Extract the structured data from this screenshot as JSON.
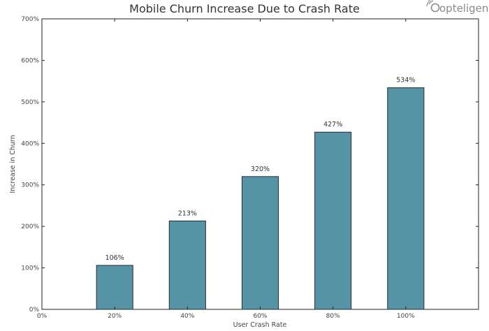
{
  "logo": {
    "text": "opteligent"
  },
  "chart_data": {
    "type": "bar",
    "title": "Mobile Churn Increase Due to Crash Rate",
    "xlabel": "User Crash Rate",
    "ylabel": "Increase in Churn",
    "x_ticks": [
      0,
      20,
      40,
      60,
      80,
      100,
      120
    ],
    "x_tick_labels": [
      "0%",
      "20%",
      "40%",
      "60%",
      "80%",
      "100%",
      ""
    ],
    "xlim": [
      0,
      120
    ],
    "y_ticks": [
      0,
      100,
      200,
      300,
      400,
      500,
      600,
      700
    ],
    "y_tick_labels": [
      "0%",
      "100%",
      "200%",
      "300%",
      "400%",
      "500%",
      "600%",
      "700%"
    ],
    "ylim": [
      0,
      700
    ],
    "categories": [
      "20%",
      "40%",
      "60%",
      "80%",
      "100%"
    ],
    "x": [
      20,
      40,
      60,
      80,
      100
    ],
    "values": [
      106,
      213,
      320,
      427,
      534
    ],
    "data_labels": [
      "106%",
      "213%",
      "320%",
      "427%",
      "534%"
    ],
    "bar_width": 10,
    "bar_color": "#5494a6",
    "bar_edge_color": "#2b2b2b",
    "grid": false,
    "legend": "none"
  }
}
